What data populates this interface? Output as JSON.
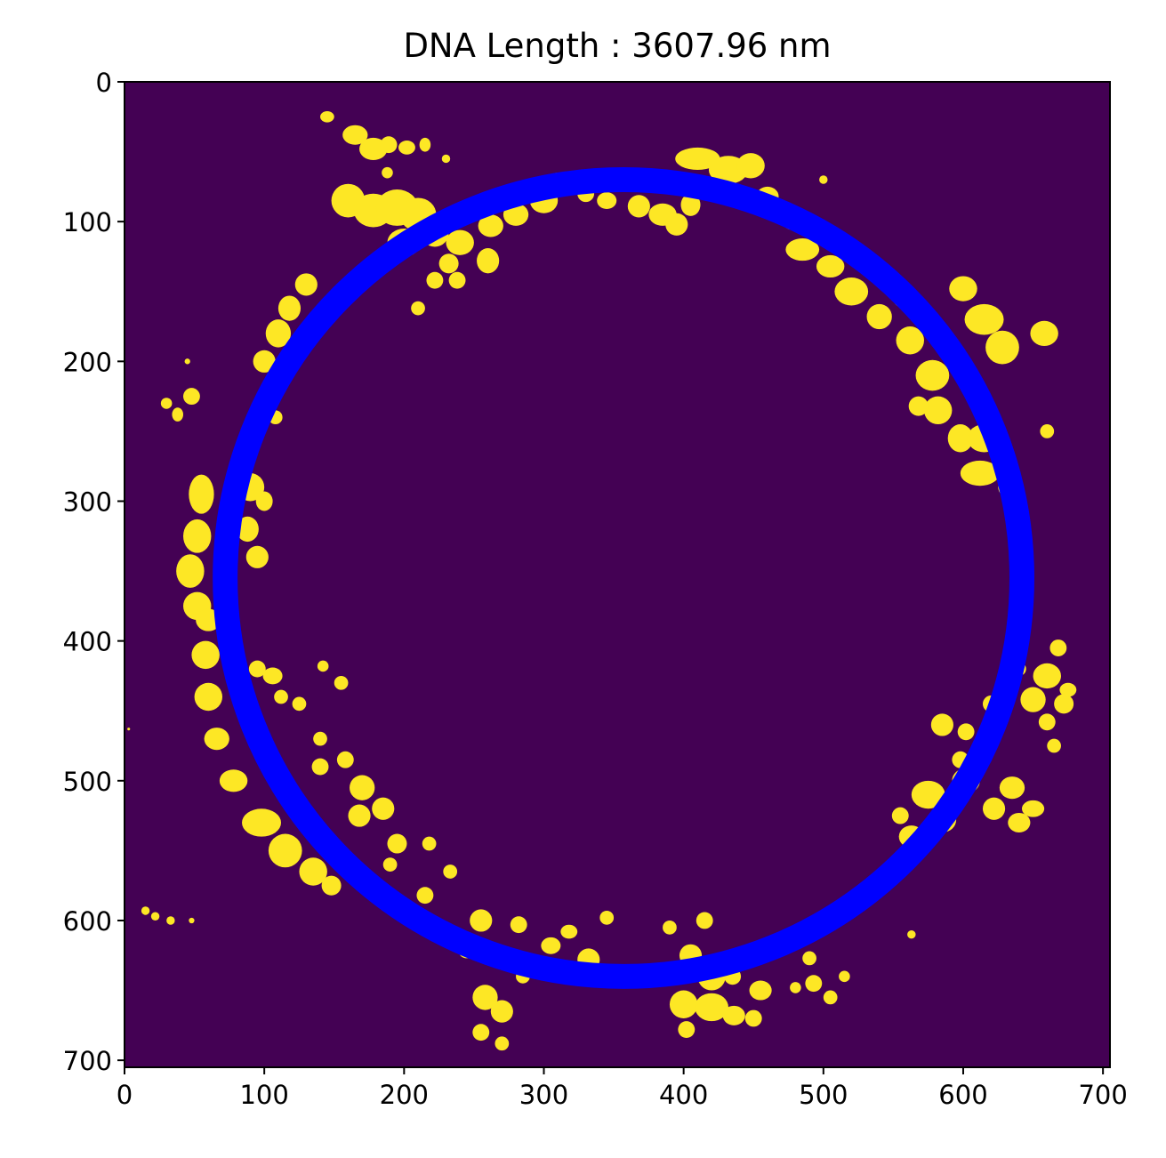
{
  "chart_data": {
    "type": "heatmap",
    "title": "DNA Length : 3607.96 nm",
    "xlabel": "",
    "ylabel": "",
    "xlim": [
      0,
      705
    ],
    "ylim": [
      705,
      0
    ],
    "x_ticks": [
      0,
      100,
      200,
      300,
      400,
      500,
      600,
      700
    ],
    "y_ticks": [
      0,
      100,
      200,
      300,
      400,
      500,
      600,
      700
    ],
    "grid": false,
    "colors": {
      "background": "#440154",
      "foreground": "#fde725",
      "fit_circle": "#0000ff"
    },
    "fit_circle": {
      "center_x": 357,
      "center_y": 355,
      "radius": 285
    },
    "blobs": [
      [
        145,
        25,
        5,
        4
      ],
      [
        165,
        38,
        9,
        7
      ],
      [
        178,
        48,
        10,
        8
      ],
      [
        189,
        45,
        6,
        6
      ],
      [
        202,
        47,
        6,
        5
      ],
      [
        215,
        45,
        4,
        5
      ],
      [
        230,
        55,
        3,
        3
      ],
      [
        188,
        65,
        4,
        4
      ],
      [
        160,
        85,
        12,
        12
      ],
      [
        178,
        92,
        14,
        12
      ],
      [
        195,
        90,
        15,
        13
      ],
      [
        210,
        95,
        13,
        12
      ],
      [
        200,
        115,
        12,
        10
      ],
      [
        222,
        108,
        10,
        10
      ],
      [
        240,
        115,
        10,
        9
      ],
      [
        232,
        130,
        7,
        7
      ],
      [
        222,
        142,
        6,
        6
      ],
      [
        210,
        162,
        5,
        5
      ],
      [
        238,
        142,
        6,
        6
      ],
      [
        260,
        128,
        8,
        9
      ],
      [
        262,
        103,
        9,
        8
      ],
      [
        280,
        95,
        9,
        8
      ],
      [
        300,
        85,
        10,
        9
      ],
      [
        310,
        72,
        8,
        7
      ],
      [
        330,
        80,
        6,
        6
      ],
      [
        345,
        85,
        7,
        6
      ],
      [
        368,
        89,
        8,
        8
      ],
      [
        385,
        95,
        10,
        8
      ],
      [
        395,
        102,
        8,
        8
      ],
      [
        405,
        88,
        7,
        8
      ],
      [
        410,
        55,
        16,
        8
      ],
      [
        432,
        63,
        14,
        10
      ],
      [
        448,
        60,
        10,
        9
      ],
      [
        460,
        82,
        8,
        7
      ],
      [
        478,
        98,
        8,
        8
      ],
      [
        500,
        70,
        3,
        3
      ],
      [
        485,
        120,
        12,
        8
      ],
      [
        505,
        132,
        10,
        8
      ],
      [
        520,
        150,
        12,
        10
      ],
      [
        540,
        168,
        9,
        9
      ],
      [
        558,
        155,
        8,
        7
      ],
      [
        562,
        185,
        10,
        10
      ],
      [
        578,
        210,
        12,
        11
      ],
      [
        582,
        235,
        10,
        10
      ],
      [
        568,
        232,
        7,
        7
      ],
      [
        598,
        255,
        9,
        10
      ],
      [
        615,
        255,
        12,
        10
      ],
      [
        612,
        280,
        14,
        9
      ],
      [
        632,
        290,
        7,
        7
      ],
      [
        660,
        250,
        5,
        5
      ],
      [
        600,
        148,
        10,
        9
      ],
      [
        615,
        170,
        14,
        11
      ],
      [
        628,
        190,
        12,
        12
      ],
      [
        658,
        180,
        10,
        9
      ],
      [
        48,
        225,
        6,
        6
      ],
      [
        38,
        238,
        4,
        5
      ],
      [
        30,
        230,
        4,
        4
      ],
      [
        45,
        200,
        2,
        2
      ],
      [
        90,
        290,
        10,
        10
      ],
      [
        100,
        300,
        6,
        7
      ],
      [
        88,
        320,
        8,
        9
      ],
      [
        95,
        340,
        8,
        8
      ],
      [
        130,
        145,
        8,
        8
      ],
      [
        118,
        162,
        8,
        9
      ],
      [
        110,
        180,
        9,
        10
      ],
      [
        100,
        200,
        8,
        8
      ],
      [
        98,
        232,
        6,
        7
      ],
      [
        108,
        240,
        5,
        5
      ],
      [
        55,
        295,
        9,
        14
      ],
      [
        52,
        325,
        10,
        12
      ],
      [
        47,
        350,
        10,
        12
      ],
      [
        52,
        375,
        10,
        10
      ],
      [
        60,
        385,
        9,
        8
      ],
      [
        58,
        410,
        10,
        10
      ],
      [
        60,
        440,
        10,
        10
      ],
      [
        66,
        470,
        9,
        8
      ],
      [
        78,
        500,
        10,
        8
      ],
      [
        98,
        530,
        14,
        10
      ],
      [
        115,
        550,
        12,
        12
      ],
      [
        135,
        565,
        10,
        10
      ],
      [
        148,
        575,
        7,
        7
      ],
      [
        95,
        420,
        6,
        6
      ],
      [
        106,
        425,
        7,
        6
      ],
      [
        112,
        440,
        5,
        5
      ],
      [
        125,
        445,
        5,
        5
      ],
      [
        140,
        470,
        5,
        5
      ],
      [
        140,
        490,
        6,
        6
      ],
      [
        158,
        485,
        6,
        6
      ],
      [
        170,
        505,
        9,
        9
      ],
      [
        168,
        525,
        8,
        8
      ],
      [
        185,
        520,
        8,
        8
      ],
      [
        195,
        545,
        7,
        7
      ],
      [
        190,
        560,
        5,
        5
      ],
      [
        218,
        545,
        5,
        5
      ],
      [
        155,
        430,
        5,
        5
      ],
      [
        142,
        418,
        4,
        4
      ],
      [
        215,
        582,
        6,
        6
      ],
      [
        233,
        565,
        5,
        5
      ],
      [
        255,
        600,
        8,
        8
      ],
      [
        282,
        603,
        6,
        6
      ],
      [
        305,
        618,
        7,
        6
      ],
      [
        318,
        608,
        6,
        5
      ],
      [
        332,
        628,
        8,
        8
      ],
      [
        345,
        598,
        5,
        5
      ],
      [
        258,
        655,
        9,
        9
      ],
      [
        270,
        665,
        8,
        8
      ],
      [
        255,
        680,
        6,
        6
      ],
      [
        270,
        688,
        5,
        5
      ],
      [
        245,
        622,
        6,
        5
      ],
      [
        285,
        640,
        5,
        5
      ],
      [
        390,
        605,
        5,
        5
      ],
      [
        415,
        600,
        6,
        6
      ],
      [
        405,
        625,
        8,
        8
      ],
      [
        420,
        640,
        10,
        10
      ],
      [
        400,
        660,
        10,
        10
      ],
      [
        420,
        662,
        12,
        10
      ],
      [
        436,
        668,
        8,
        7
      ],
      [
        402,
        678,
        6,
        6
      ],
      [
        435,
        640,
        6,
        6
      ],
      [
        455,
        650,
        8,
        7
      ],
      [
        450,
        670,
        6,
        6
      ],
      [
        460,
        620,
        5,
        5
      ],
      [
        490,
        627,
        5,
        5
      ],
      [
        493,
        645,
        6,
        6
      ],
      [
        505,
        655,
        5,
        5
      ],
      [
        515,
        640,
        4,
        4
      ],
      [
        480,
        648,
        4,
        4
      ],
      [
        563,
        610,
        3,
        3
      ],
      [
        15,
        593,
        3,
        3
      ],
      [
        22,
        597,
        3,
        3
      ],
      [
        33,
        600,
        3,
        3
      ],
      [
        48,
        600,
        2,
        2
      ],
      [
        3,
        463,
        1,
        1
      ],
      [
        575,
        510,
        12,
        10
      ],
      [
        585,
        528,
        10,
        9
      ],
      [
        563,
        540,
        9,
        8
      ],
      [
        555,
        525,
        6,
        6
      ],
      [
        602,
        500,
        10,
        9
      ],
      [
        622,
        520,
        8,
        8
      ],
      [
        635,
        505,
        9,
        8
      ],
      [
        640,
        530,
        8,
        7
      ],
      [
        650,
        520,
        8,
        6
      ],
      [
        585,
        460,
        8,
        8
      ],
      [
        602,
        465,
        6,
        6
      ],
      [
        615,
        473,
        6,
        6
      ],
      [
        598,
        485,
        6,
        6
      ],
      [
        620,
        445,
        6,
        6
      ],
      [
        650,
        442,
        9,
        9
      ],
      [
        660,
        425,
        10,
        9
      ],
      [
        672,
        445,
        7,
        7
      ],
      [
        660,
        458,
        6,
        6
      ],
      [
        675,
        435,
        6,
        5
      ],
      [
        665,
        475,
        5,
        5
      ],
      [
        638,
        405,
        6,
        8
      ],
      [
        668,
        405,
        6,
        6
      ],
      [
        640,
        420,
        5,
        5
      ]
    ]
  }
}
